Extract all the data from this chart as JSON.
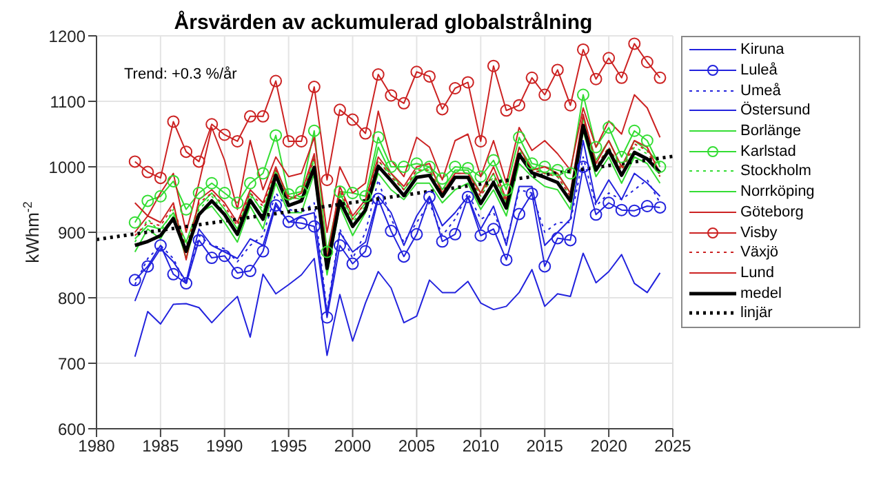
{
  "chart_data": {
    "type": "line",
    "title": "Årsvärden av ackumulerad globalstrålning",
    "ylabel": "kWhm$^{-2}$",
    "annotations": [
      "Trend: +0.3 %/år"
    ],
    "x": [
      1983,
      1984,
      1985,
      1986,
      1987,
      1988,
      1989,
      1990,
      1991,
      1992,
      1993,
      1994,
      1995,
      1996,
      1997,
      1998,
      1999,
      2000,
      2001,
      2002,
      2003,
      2004,
      2005,
      2006,
      2007,
      2008,
      2009,
      2010,
      2011,
      2012,
      2013,
      2014,
      2015,
      2016,
      2017,
      2018,
      2019,
      2020,
      2021,
      2022,
      2023,
      2024
    ],
    "series": [
      {
        "name": "Kiruna",
        "color": "#2222dd",
        "marker": "none",
        "line_style": "solid",
        "values": [
          710,
          779,
          760,
          790,
          791,
          785,
          762,
          783,
          802,
          740,
          836,
          806,
          820,
          835,
          860,
          712,
          805,
          734,
          792,
          840,
          815,
          762,
          772,
          827,
          808,
          808,
          825,
          792,
          782,
          787,
          808,
          843,
          787,
          806,
          802,
          868,
          823,
          840,
          866,
          822,
          808,
          838
        ]
      },
      {
        "name": "Luleå",
        "color": "#2222dd",
        "marker": "circle",
        "line_style": "solid",
        "values": [
          827,
          848,
          880,
          836,
          822,
          888,
          861,
          864,
          838,
          841,
          871,
          941,
          916,
          914,
          909,
          770,
          880,
          852,
          871,
          951,
          902,
          863,
          897,
          954,
          886,
          897,
          954,
          895,
          905,
          858,
          928,
          959,
          848,
          891,
          888,
          1000,
          927,
          945,
          934,
          933,
          940,
          938
        ]
      },
      {
        "name": "Umeå",
        "color": "#2222dd",
        "marker": "none",
        "line_style": "dotted",
        "values": [
          820,
          860,
          880,
          860,
          820,
          895,
          880,
          875,
          855,
          880,
          895,
          960,
          935,
          930,
          945,
          780,
          905,
          860,
          900,
          980,
          920,
          885,
          915,
          945,
          895,
          920,
          960,
          920,
          930,
          885,
          965,
          960,
          900,
          915,
          915,
          1015,
          940,
          960,
          950,
          965,
          980,
          945
        ]
      },
      {
        "name": "Östersund",
        "color": "#2222dd",
        "marker": "none",
        "line_style": "solid",
        "values": [
          795,
          845,
          875,
          855,
          825,
          905,
          880,
          870,
          860,
          890,
          880,
          945,
          915,
          925,
          930,
          775,
          900,
          870,
          885,
          955,
          930,
          880,
          925,
          955,
          910,
          930,
          955,
          905,
          940,
          880,
          970,
          970,
          880,
          900,
          920,
          1040,
          945,
          980,
          950,
          990,
          975,
          955
        ]
      },
      {
        "name": "Borlänge",
        "color": "#33dd33",
        "marker": "none",
        "line_style": "solid",
        "values": [
          870,
          905,
          890,
          925,
          860,
          930,
          940,
          915,
          885,
          940,
          905,
          975,
          930,
          930,
          990,
          835,
          940,
          895,
          930,
          990,
          965,
          950,
          975,
          975,
          945,
          965,
          975,
          935,
          965,
          925,
          1005,
          985,
          970,
          965,
          935,
          1055,
          985,
          1015,
          975,
          1015,
          1005,
          975
        ]
      },
      {
        "name": "Karlstad",
        "color": "#33dd33",
        "marker": "circle",
        "line_style": "solid",
        "values": [
          915,
          948,
          955,
          978,
          935,
          960,
          975,
          960,
          945,
          975,
          990,
          1048,
          958,
          962,
          1055,
          870,
          962,
          960,
          955,
          1045,
          1000,
          1000,
          1005,
          1000,
          982,
          1000,
          998,
          985,
          1010,
          965,
          1045,
          1005,
          1000,
          995,
          990,
          1110,
          1030,
          1060,
          1015,
          1055,
          1040,
          1000
        ]
      },
      {
        "name": "Stockholm",
        "color": "#33dd33",
        "marker": "none",
        "line_style": "dotted",
        "values": [
          885,
          920,
          900,
          935,
          880,
          935,
          955,
          930,
          900,
          955,
          935,
          990,
          950,
          955,
          1010,
          850,
          955,
          915,
          940,
          1010,
          985,
          965,
          995,
          995,
          960,
          990,
          990,
          955,
          985,
          945,
          1025,
          995,
          990,
          985,
          955,
          1070,
          1000,
          1030,
          995,
          1030,
          1020,
          1000
        ]
      },
      {
        "name": "Norrköping",
        "color": "#33dd33",
        "marker": "none",
        "line_style": "solid",
        "values": [
          890,
          910,
          905,
          930,
          885,
          940,
          960,
          935,
          905,
          960,
          930,
          995,
          955,
          950,
          1015,
          855,
          960,
          920,
          945,
          1030,
          990,
          965,
          990,
          1000,
          965,
          995,
          995,
          960,
          990,
          945,
          1030,
          1000,
          990,
          990,
          960,
          1075,
          1010,
          1040,
          1000,
          1040,
          1025,
          1005
        ]
      },
      {
        "name": "Göteborg",
        "color": "#cc2222",
        "marker": "none",
        "line_style": "solid",
        "values": [
          900,
          925,
          915,
          945,
          858,
          950,
          965,
          945,
          915,
          965,
          945,
          1000,
          950,
          960,
          1020,
          860,
          970,
          925,
          950,
          1015,
          990,
          970,
          1000,
          1005,
          960,
          990,
          990,
          960,
          1000,
          950,
          1030,
          995,
          1000,
          990,
          960,
          1080,
          1005,
          1040,
          1000,
          1040,
          1030,
          990
        ]
      },
      {
        "name": "Visby",
        "color": "#cc2222",
        "marker": "circle",
        "line_style": "solid",
        "values": [
          1008,
          992,
          983,
          1069,
          1023,
          1008,
          1065,
          1049,
          1039,
          1077,
          1077,
          1131,
          1039,
          1039,
          1122,
          980,
          1087,
          1072,
          1051,
          1141,
          1109,
          1097,
          1145,
          1138,
          1088,
          1120,
          1129,
          1039,
          1154,
          1086,
          1094,
          1136,
          1110,
          1148,
          1094,
          1179,
          1134,
          1166,
          1136,
          1188,
          1160,
          1136
        ]
      },
      {
        "name": "Växjö",
        "color": "#cc2222",
        "marker": "none",
        "line_style": "dotted",
        "values": [
          895,
          915,
          910,
          940,
          875,
          945,
          960,
          940,
          910,
          960,
          940,
          995,
          955,
          950,
          1015,
          855,
          965,
          920,
          945,
          1010,
          985,
          965,
          995,
          995,
          955,
          985,
          985,
          955,
          990,
          945,
          1020,
          995,
          990,
          985,
          955,
          1075,
          1000,
          1030,
          995,
          1035,
          1025,
          985
        ]
      },
      {
        "name": "Lund",
        "color": "#cc2222",
        "marker": "none",
        "line_style": "solid",
        "values": [
          945,
          925,
          960,
          990,
          900,
          975,
          1060,
          1010,
          935,
          1040,
          965,
          1015,
          985,
          990,
          1045,
          900,
          1000,
          960,
          975,
          1085,
          1010,
          985,
          1045,
          1030,
          980,
          1040,
          1050,
          985,
          1040,
          975,
          1060,
          1025,
          1040,
          1020,
          995,
          1090,
          1030,
          1070,
          1050,
          1110,
          1090,
          1045
        ]
      },
      {
        "name": "medel",
        "color": "#000000",
        "marker": "none",
        "line_style": "solid",
        "values": [
          880,
          886,
          895,
          921,
          871,
          927,
          948,
          927,
          897,
          949,
          920,
          987,
          941,
          948,
          999,
          845,
          948,
          909,
          934,
          1001,
          979,
          956,
          984,
          987,
          955,
          984,
          984,
          944,
          976,
          937,
          1019,
          991,
          984,
          976,
          948,
          1063,
          995,
          1025,
          987,
          1022,
          1012,
          991
        ]
      },
      {
        "name": "linjär",
        "type": "line",
        "color": "#000000",
        "marker": "none",
        "line_style": "dotted",
        "x": [
          1980,
          2025
        ],
        "values": [
          889,
          1016
        ]
      }
    ],
    "xlim": [
      1980,
      2025
    ],
    "xticks": [
      1980,
      1985,
      1990,
      1995,
      2000,
      2005,
      2010,
      2015,
      2020,
      2025
    ],
    "ylim": [
      600,
      1200
    ],
    "yticks": [
      600,
      700,
      800,
      900,
      1000,
      1100,
      1200
    ],
    "grid": true,
    "legend": "right"
  }
}
